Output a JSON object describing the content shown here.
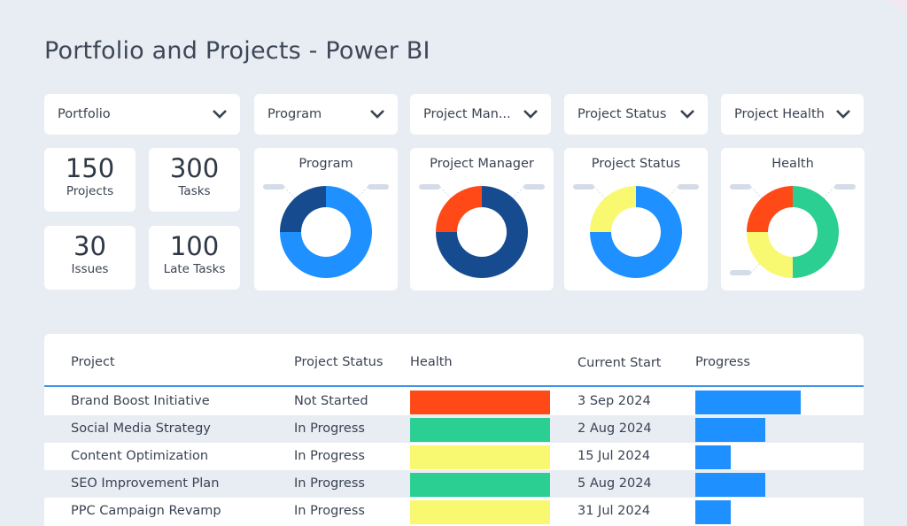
{
  "title": "Portfolio and Projects - Power BI",
  "filters": [
    {
      "label": "Portfolio",
      "icon": "chevron-down-icon"
    },
    {
      "label": "Program",
      "icon": "chevron-down-icon"
    },
    {
      "label": "Project Man...",
      "icon": "chevron-down-icon"
    },
    {
      "label": "Project Status",
      "icon": "chevron-down-icon"
    },
    {
      "label": "Project Health",
      "icon": "chevron-down-icon"
    }
  ],
  "kpis": [
    {
      "value": "150",
      "label": "Projects"
    },
    {
      "value": "300",
      "label": "Tasks"
    },
    {
      "value": "30",
      "label": "Issues"
    },
    {
      "value": "100",
      "label": "Late Tasks"
    }
  ],
  "colors": {
    "light_blue": "#1e90ff",
    "dark_blue": "#164c8f",
    "orange": "#ff4a17",
    "yellow": "#f9f871",
    "green": "#2bcf92",
    "accent_line": "#3f93e6"
  },
  "chart_data": [
    {
      "type": "pie",
      "title": "Program",
      "slices": [
        {
          "value": 75,
          "color": "#1e90ff"
        },
        {
          "value": 25,
          "color": "#164c8f"
        }
      ]
    },
    {
      "type": "pie",
      "title": "Project Manager",
      "slices": [
        {
          "value": 75,
          "color": "#164c8f"
        },
        {
          "value": 25,
          "color": "#ff4a17"
        }
      ]
    },
    {
      "type": "pie",
      "title": "Project Status",
      "slices": [
        {
          "value": 75,
          "color": "#1e90ff"
        },
        {
          "value": 25,
          "color": "#f9f871"
        }
      ]
    },
    {
      "type": "pie",
      "title": "Health",
      "slices": [
        {
          "value": 50,
          "color": "#2bcf92"
        },
        {
          "value": 25,
          "color": "#f9f871"
        },
        {
          "value": 25,
          "color": "#ff4a17"
        }
      ]
    }
  ],
  "table": {
    "headers": [
      "Project",
      "Project Status",
      "Health",
      "Current Start",
      "Progress"
    ],
    "rows": [
      {
        "project": "Brand Boost Initiative",
        "status": "Not Started",
        "health": "#ff4a17",
        "start": "3 Sep 2024",
        "progress": 0.6
      },
      {
        "project": "Social Media Strategy",
        "status": "In Progress",
        "health": "#2bcf92",
        "start": "2 Aug 2024",
        "progress": 0.4
      },
      {
        "project": "Content Optimization",
        "status": "In Progress",
        "health": "#f9f871",
        "start": "15 Jul 2024",
        "progress": 0.2
      },
      {
        "project": "SEO Improvement Plan",
        "status": "In Progress",
        "health": "#2bcf92",
        "start": "5 Aug 2024",
        "progress": 0.4
      },
      {
        "project": "PPC Campaign Revamp",
        "status": "In Progress",
        "health": "#f9f871",
        "start": "31 Jul 2024",
        "progress": 0.2
      }
    ]
  }
}
